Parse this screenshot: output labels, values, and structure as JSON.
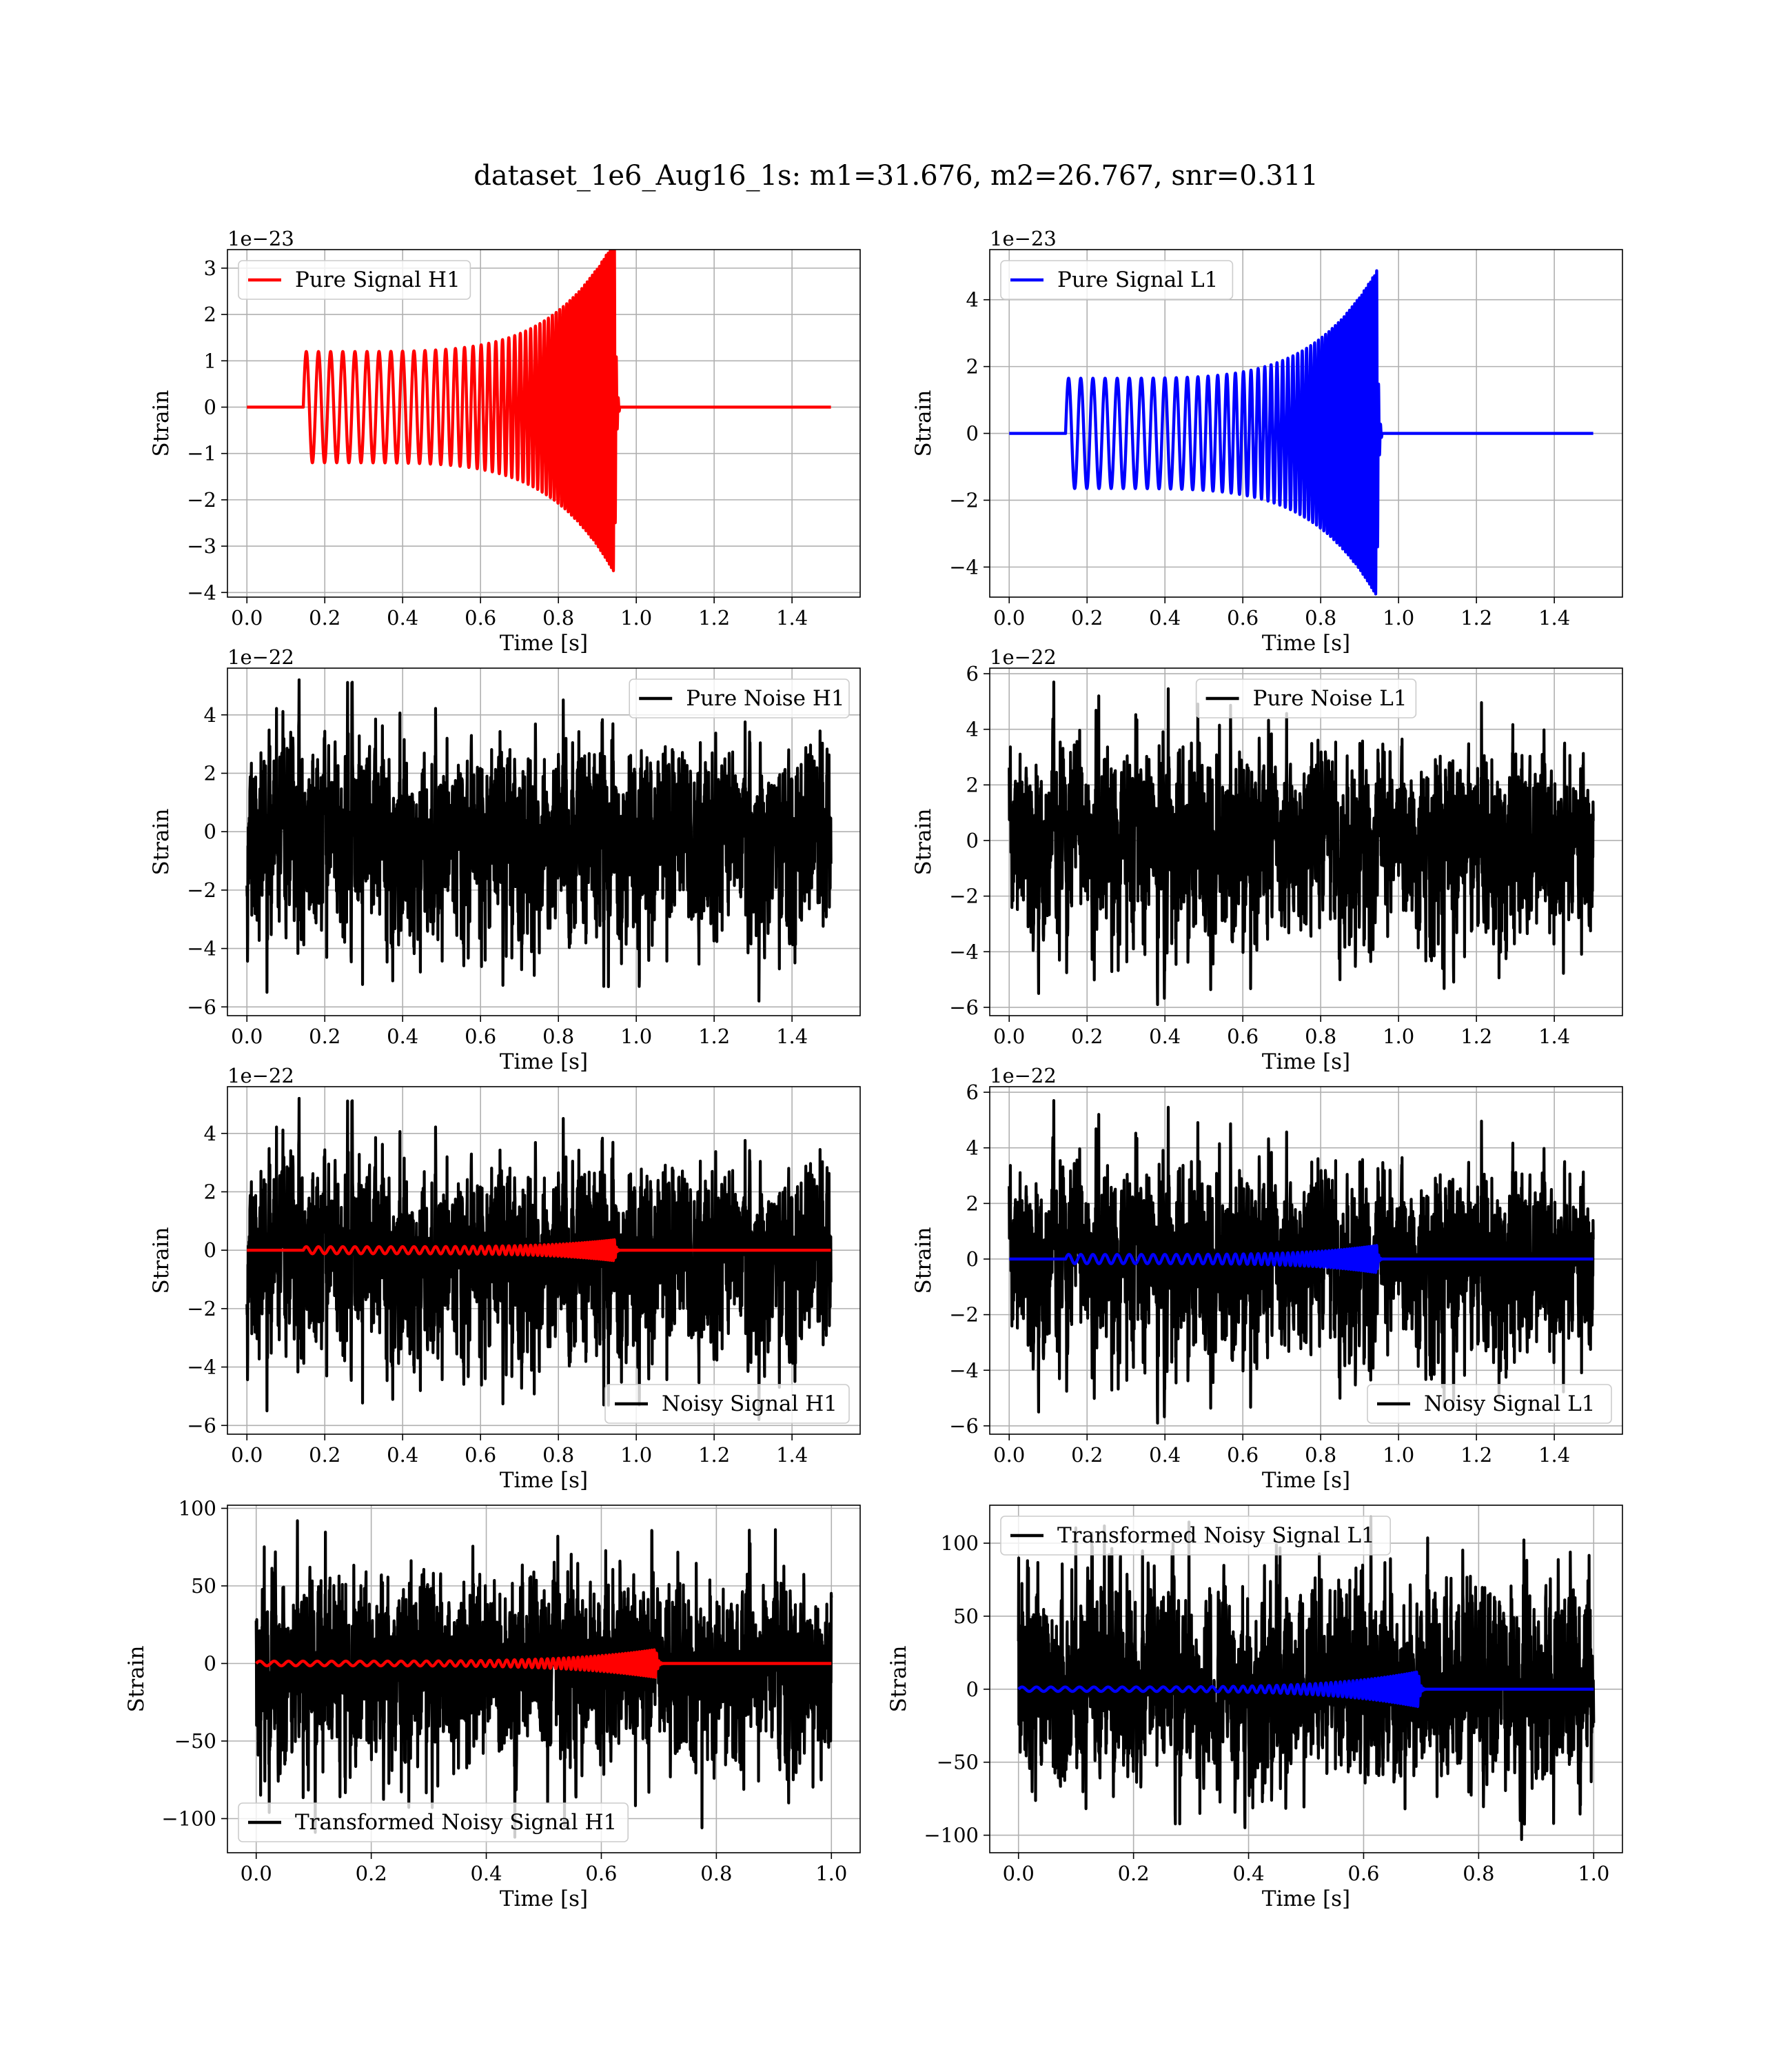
{
  "figure": {
    "title": "dataset_1e6_Aug16_1s: m1=31.676, m2=26.767, snr=0.311"
  },
  "colors": {
    "h1_signal": "#ff0000",
    "l1_signal": "#0000ff",
    "noise": "#000000",
    "grid": "#b0b0b0"
  },
  "chart_data": [
    {
      "id": "pure-signal-h1",
      "type": "line",
      "xlabel": "Time [s]",
      "ylabel": "Strain",
      "offset_text": "1e−23",
      "xlim": [
        -0.05,
        1.575
      ],
      "ylim": [
        -4.1,
        3.4
      ],
      "xticks": [
        0.0,
        0.2,
        0.4,
        0.6,
        0.8,
        1.0,
        1.2,
        1.4
      ],
      "xticklabels": [
        "0.0",
        "0.2",
        "0.4",
        "0.6",
        "0.8",
        "1.0",
        "1.2",
        "1.4"
      ],
      "yticks": [
        3,
        2,
        1,
        0,
        -1,
        -2,
        -3,
        -4
      ],
      "yticklabels": [
        "3",
        "2",
        "1",
        "0",
        "−1",
        "−2",
        "−3",
        "−4"
      ],
      "grid": true,
      "legend": {
        "position": "upper left",
        "entries": [
          {
            "label": "Pure Signal H1",
            "color": "#ff0000"
          }
        ]
      },
      "series": [
        {
          "name": "Pure Signal H1",
          "color": "#ff0000",
          "kind": "chirp",
          "t_start": 0.145,
          "t_merge": 0.945,
          "t_end": 1.5,
          "amp_start": 1.2,
          "amp_peak": 3.6,
          "freq_start": 32,
          "freq_peak": 200
        }
      ]
    },
    {
      "id": "pure-signal-l1",
      "type": "line",
      "xlabel": "Time [s]",
      "ylabel": "Strain",
      "offset_text": "1e−23",
      "xlim": [
        -0.05,
        1.575
      ],
      "ylim": [
        -4.9,
        5.5
      ],
      "xticks": [
        0.0,
        0.2,
        0.4,
        0.6,
        0.8,
        1.0,
        1.2,
        1.4
      ],
      "xticklabels": [
        "0.0",
        "0.2",
        "0.4",
        "0.6",
        "0.8",
        "1.0",
        "1.2",
        "1.4"
      ],
      "yticks": [
        4,
        2,
        0,
        -2,
        -4
      ],
      "yticklabels": [
        "4",
        "2",
        "0",
        "−2",
        "−4"
      ],
      "grid": true,
      "legend": {
        "position": "upper left",
        "entries": [
          {
            "label": "Pure Signal L1",
            "color": "#0000ff"
          }
        ]
      },
      "series": [
        {
          "name": "Pure Signal L1",
          "color": "#0000ff",
          "kind": "chirp",
          "t_start": 0.145,
          "t_merge": 0.945,
          "t_end": 1.5,
          "amp_start": 1.65,
          "amp_peak": 4.9,
          "freq_start": 32,
          "freq_peak": 200
        }
      ]
    },
    {
      "id": "pure-noise-h1",
      "type": "line",
      "xlabel": "Time [s]",
      "ylabel": "Strain",
      "offset_text": "1e−22",
      "xlim": [
        -0.05,
        1.575
      ],
      "ylim": [
        -6.3,
        5.6
      ],
      "xticks": [
        0.0,
        0.2,
        0.4,
        0.6,
        0.8,
        1.0,
        1.2,
        1.4
      ],
      "xticklabels": [
        "0.0",
        "0.2",
        "0.4",
        "0.6",
        "0.8",
        "1.0",
        "1.2",
        "1.4"
      ],
      "yticks": [
        4,
        2,
        0,
        -2,
        -4,
        -6
      ],
      "yticklabels": [
        "4",
        "2",
        "0",
        "−2",
        "−4",
        "−6"
      ],
      "grid": true,
      "legend": {
        "position": "upper right",
        "entries": [
          {
            "label": "Pure Noise H1",
            "color": "#000000"
          }
        ]
      },
      "series": [
        {
          "name": "Pure Noise H1",
          "color": "#000000",
          "kind": "noise",
          "t_start": 0.0,
          "t_end": 1.5,
          "amp": 1.6,
          "max": 5.2,
          "min": -5.8,
          "seed": 11
        }
      ]
    },
    {
      "id": "pure-noise-l1",
      "type": "line",
      "xlabel": "Time [s]",
      "ylabel": "Strain",
      "offset_text": "1e−22",
      "xlim": [
        -0.05,
        1.575
      ],
      "ylim": [
        -6.3,
        6.2
      ],
      "xticks": [
        0.0,
        0.2,
        0.4,
        0.6,
        0.8,
        1.0,
        1.2,
        1.4
      ],
      "xticklabels": [
        "0.0",
        "0.2",
        "0.4",
        "0.6",
        "0.8",
        "1.0",
        "1.2",
        "1.4"
      ],
      "yticks": [
        6,
        4,
        2,
        0,
        -2,
        -4,
        -6
      ],
      "yticklabels": [
        "6",
        "4",
        "2",
        "0",
        "−2",
        "−4",
        "−6"
      ],
      "grid": true,
      "legend": {
        "position": "upper center",
        "entries": [
          {
            "label": "Pure Noise L1",
            "color": "#000000"
          }
        ]
      },
      "series": [
        {
          "name": "Pure Noise L1",
          "color": "#000000",
          "kind": "noise",
          "t_start": 0.0,
          "t_end": 1.5,
          "amp": 1.7,
          "max": 5.7,
          "min": -5.9,
          "seed": 23
        }
      ]
    },
    {
      "id": "noisy-signal-h1",
      "type": "line",
      "xlabel": "Time [s]",
      "ylabel": "Strain",
      "offset_text": "1e−22",
      "xlim": [
        -0.05,
        1.575
      ],
      "ylim": [
        -6.3,
        5.6
      ],
      "xticks": [
        0.0,
        0.2,
        0.4,
        0.6,
        0.8,
        1.0,
        1.2,
        1.4
      ],
      "xticklabels": [
        "0.0",
        "0.2",
        "0.4",
        "0.6",
        "0.8",
        "1.0",
        "1.2",
        "1.4"
      ],
      "yticks": [
        4,
        2,
        0,
        -2,
        -4,
        -6
      ],
      "yticklabels": [
        "4",
        "2",
        "0",
        "−2",
        "−4",
        "−6"
      ],
      "grid": true,
      "legend": {
        "position": "lower right",
        "entries": [
          {
            "label": "Noisy Signal H1",
            "color": "#000000"
          }
        ]
      },
      "series": [
        {
          "name": "Noisy Signal H1",
          "color": "#000000",
          "kind": "noise",
          "t_start": 0.0,
          "t_end": 1.5,
          "amp": 1.6,
          "max": 5.2,
          "min": -5.8,
          "seed": 11
        },
        {
          "color": "#ff0000",
          "kind": "chirp",
          "t_start": 0.145,
          "t_merge": 0.945,
          "t_end": 1.5,
          "amp_start": 0.12,
          "amp_peak": 0.36,
          "freq_start": 32,
          "freq_peak": 200
        }
      ]
    },
    {
      "id": "noisy-signal-l1",
      "type": "line",
      "xlabel": "Time [s]",
      "ylabel": "Strain",
      "offset_text": "1e−22",
      "xlim": [
        -0.05,
        1.575
      ],
      "ylim": [
        -6.3,
        6.2
      ],
      "xticks": [
        0.0,
        0.2,
        0.4,
        0.6,
        0.8,
        1.0,
        1.2,
        1.4
      ],
      "xticklabels": [
        "0.0",
        "0.2",
        "0.4",
        "0.6",
        "0.8",
        "1.0",
        "1.2",
        "1.4"
      ],
      "yticks": [
        6,
        4,
        2,
        0,
        -2,
        -4,
        -6
      ],
      "yticklabels": [
        "6",
        "4",
        "2",
        "0",
        "−2",
        "−4",
        "−6"
      ],
      "grid": true,
      "legend": {
        "position": "lower right",
        "entries": [
          {
            "label": "Noisy Signal L1",
            "color": "#000000"
          }
        ]
      },
      "series": [
        {
          "name": "Noisy Signal L1",
          "color": "#000000",
          "kind": "noise",
          "t_start": 0.0,
          "t_end": 1.5,
          "amp": 1.7,
          "max": 5.7,
          "min": -5.9,
          "seed": 23
        },
        {
          "color": "#0000ff",
          "kind": "chirp",
          "t_start": 0.145,
          "t_merge": 0.945,
          "t_end": 1.5,
          "amp_start": 0.165,
          "amp_peak": 0.49,
          "freq_start": 32,
          "freq_peak": 200
        }
      ]
    },
    {
      "id": "transformed-noisy-signal-h1",
      "type": "line",
      "xlabel": "Time [s]",
      "ylabel": "Strain",
      "offset_text": "",
      "xlim": [
        -0.05,
        1.05
      ],
      "ylim": [
        -122,
        102
      ],
      "xticks": [
        0.0,
        0.2,
        0.4,
        0.6,
        0.8,
        1.0
      ],
      "xticklabels": [
        "0.0",
        "0.2",
        "0.4",
        "0.6",
        "0.8",
        "1.0"
      ],
      "yticks": [
        100,
        50,
        0,
        -50,
        -100
      ],
      "yticklabels": [
        "100",
        "50",
        "0",
        "−50",
        "−100"
      ],
      "grid": true,
      "legend": {
        "position": "lower left",
        "entries": [
          {
            "label": "Transformed Noisy Signal H1",
            "color": "#000000"
          }
        ]
      },
      "series": [
        {
          "name": "Transformed Noisy Signal H1",
          "color": "#000000",
          "kind": "noise",
          "t_start": 0.0,
          "t_end": 1.0,
          "amp": 30,
          "max": 92,
          "min": -112,
          "seed": 37
        },
        {
          "color": "#ff0000",
          "kind": "chirp",
          "t_start": 0.0,
          "t_merge": 0.695,
          "t_end": 1.0,
          "amp_start": 1.5,
          "amp_peak": 9,
          "freq_start": 40,
          "freq_peak": 250
        }
      ]
    },
    {
      "id": "transformed-noisy-signal-l1",
      "type": "line",
      "xlabel": "Time [s]",
      "ylabel": "Strain",
      "offset_text": "",
      "xlim": [
        -0.05,
        1.05
      ],
      "ylim": [
        -112,
        126
      ],
      "xticks": [
        0.0,
        0.2,
        0.4,
        0.6,
        0.8,
        1.0
      ],
      "xticklabels": [
        "0.0",
        "0.2",
        "0.4",
        "0.6",
        "0.8",
        "1.0"
      ],
      "yticks": [
        100,
        50,
        0,
        -50,
        -100
      ],
      "yticklabels": [
        "100",
        "50",
        "0",
        "−50",
        "−100"
      ],
      "grid": true,
      "legend": {
        "position": "upper left",
        "entries": [
          {
            "label": "Transformed Noisy Signal L1",
            "color": "#000000"
          }
        ]
      },
      "series": [
        {
          "name": "Transformed Noisy Signal L1",
          "color": "#000000",
          "kind": "noise",
          "t_start": 0.0,
          "t_end": 1.0,
          "amp": 28,
          "max": 118,
          "min": -103,
          "seed": 53
        },
        {
          "color": "#0000ff",
          "kind": "chirp",
          "t_start": 0.0,
          "t_merge": 0.695,
          "t_end": 1.0,
          "amp_start": 1.5,
          "amp_peak": 12,
          "freq_start": 40,
          "freq_peak": 250
        }
      ]
    }
  ]
}
